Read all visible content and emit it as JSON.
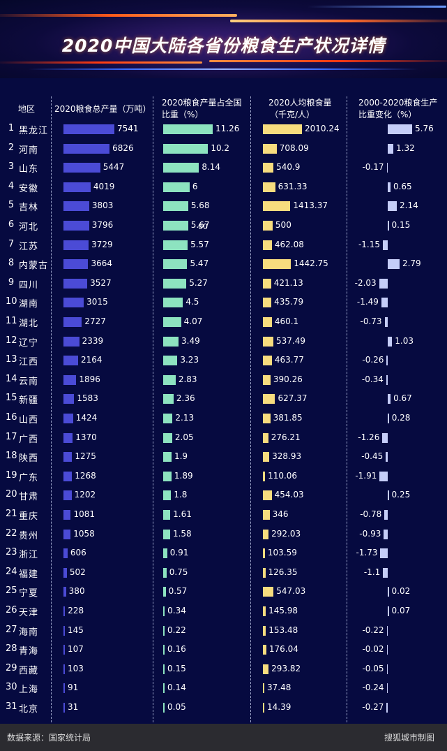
{
  "title": "2020中国大陆各省份粮食生产状况详情",
  "headers": {
    "region": "地区",
    "total": "2020粮食总产量（万吨）",
    "share_l1": "2020粮食产量占全国",
    "share_l2": "比重（%）",
    "percap_l1": "2020人均粮食量",
    "percap_l2": "（千克/人）",
    "change_l1": "2000-2020粮食生产",
    "change_l2": "比重变化（%）"
  },
  "footer": {
    "source": "数据来源：国家统计局",
    "credit": "搜狐城市制图"
  },
  "colors": {
    "total": "#4b4bd6",
    "share": "#8de3c0",
    "percap": "#f7dc7e",
    "change": "#c5cdf8",
    "background": "#060a40"
  },
  "stray_mark": "00",
  "chart_data": {
    "type": "bar",
    "categories": [
      "黑龙江",
      "河南",
      "山东",
      "安徽",
      "吉林",
      "河北",
      "江苏",
      "内蒙古",
      "四川",
      "湖南",
      "湖北",
      "辽宁",
      "江西",
      "云南",
      "新疆",
      "山西",
      "广西",
      "陕西",
      "广东",
      "甘肃",
      "重庆",
      "贵州",
      "浙江",
      "福建",
      "宁夏",
      "天津",
      "海南",
      "青海",
      "西藏",
      "上海",
      "北京"
    ],
    "ranks": [
      "1",
      "2",
      "3",
      "4",
      "5",
      "6",
      "7",
      "8",
      "9",
      "10",
      "11",
      "12",
      "13",
      "14",
      "15",
      "16",
      "17",
      "18",
      "19",
      "20",
      "21",
      "22",
      "23",
      "24",
      "25",
      "26",
      "27",
      "28",
      "29",
      "30",
      "31"
    ],
    "series": [
      {
        "name": "2020粮食总产量（万吨）",
        "values": [
          7541,
          6826,
          5447,
          4019,
          3803,
          3796,
          3729,
          3664,
          3527,
          3015,
          2727,
          2339,
          2164,
          1896,
          1583,
          1424,
          1370,
          1275,
          1268,
          1202,
          1081,
          1058,
          606,
          502,
          380,
          228,
          145,
          107,
          103,
          91,
          31
        ]
      },
      {
        "name": "2020粮食产量占全国比重（%）",
        "values": [
          11.26,
          10.2,
          8.14,
          6,
          5.68,
          5.67,
          5.57,
          5.47,
          5.27,
          4.5,
          4.07,
          3.49,
          3.23,
          2.83,
          2.36,
          2.13,
          2.05,
          1.9,
          1.89,
          1.8,
          1.61,
          1.58,
          0.91,
          0.75,
          0.57,
          0.34,
          0.22,
          0.16,
          0.15,
          0.14,
          0.05
        ]
      },
      {
        "name": "2020人均粮食量（千克/人）",
        "values": [
          2010.24,
          708.09,
          540.9,
          631.33,
          1413.37,
          500,
          462.08,
          1442.75,
          421.13,
          435.79,
          460.1,
          537.49,
          463.77,
          390.26,
          627.37,
          381.85,
          276.21,
          328.93,
          110.06,
          454.03,
          346,
          292.03,
          103.59,
          126.35,
          547.03,
          145.98,
          153.48,
          176.04,
          293.82,
          37.48,
          14.39
        ]
      },
      {
        "name": "2000-2020粮食生产比重变化（%）",
        "values": [
          5.76,
          1.32,
          -0.17,
          0.65,
          2.14,
          0.15,
          -1.15,
          2.79,
          -2.03,
          -1.49,
          -0.73,
          1.03,
          -0.26,
          -0.34,
          0.67,
          0.28,
          -1.26,
          -0.45,
          -1.91,
          0.25,
          -0.78,
          -0.93,
          -1.73,
          -1.1,
          0.02,
          0.07,
          -0.22,
          -0.02,
          -0.05,
          -0.24,
          -0.27
        ]
      }
    ]
  }
}
